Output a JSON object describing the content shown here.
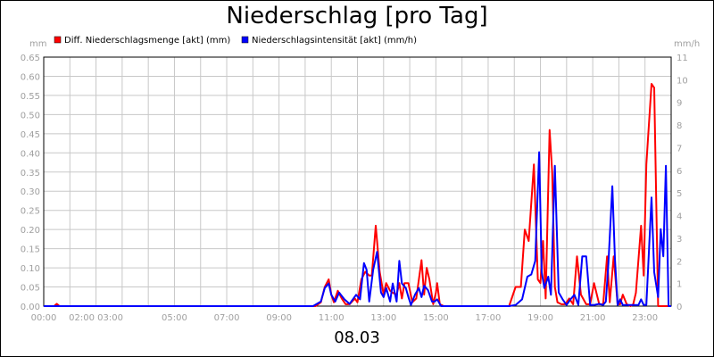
{
  "title": "Niederschlag [pro Tag]",
  "date_label": "08.03",
  "chart_data": {
    "type": "line",
    "title": "Niederschlag [pro Tag]",
    "xlabel": "08.03",
    "left_axis": {
      "unit": "mm",
      "ylim": [
        0,
        0.65
      ],
      "ticks": [
        "0.00",
        "0.05",
        "0.10",
        "0.15",
        "0.20",
        "0.25",
        "0.30",
        "0.35",
        "0.40",
        "0.45",
        "0.50",
        "0.55",
        "0.60",
        "0.65"
      ]
    },
    "right_axis": {
      "unit": "mm/h",
      "ylim": [
        0,
        11
      ],
      "ticks": [
        "0",
        "1",
        "2",
        "3",
        "4",
        "5",
        "6",
        "7",
        "8",
        "9",
        "10",
        "11"
      ]
    },
    "x_ticks": [
      {
        "x": 0,
        "label": "00:00"
      },
      {
        "x": 2,
        "label": "02:00 03:00"
      },
      {
        "x": 5,
        "label": "05:00"
      },
      {
        "x": 7,
        "label": "07:00"
      },
      {
        "x": 9,
        "label": "09:00"
      },
      {
        "x": 11,
        "label": "11:00"
      },
      {
        "x": 13,
        "label": "13:00"
      },
      {
        "x": 15,
        "label": "15:00"
      },
      {
        "x": 17,
        "label": "17:00"
      },
      {
        "x": 19,
        "label": "19:00"
      },
      {
        "x": 21,
        "label": "21:00"
      },
      {
        "x": 23,
        "label": "23:00"
      }
    ],
    "x_gridlines": [
      0,
      1,
      2,
      3,
      4,
      5,
      6,
      7,
      8,
      9,
      10,
      11,
      12,
      13,
      14,
      15,
      16,
      17,
      18,
      19,
      20,
      21,
      22,
      23,
      24
    ],
    "grid": true,
    "legend_position": "top-left",
    "series": [
      {
        "name": "Diff. Niederschlagsmenge [akt] (mm)",
        "axis": "left",
        "color": "#ff0000",
        "x": [
          0,
          0.4,
          0.5,
          0.6,
          10.4,
          10.6,
          10.75,
          10.9,
          11.0,
          11.1,
          11.25,
          11.4,
          11.55,
          11.7,
          11.9,
          12.0,
          12.15,
          12.3,
          12.45,
          12.55,
          12.7,
          12.85,
          13.0,
          13.1,
          13.25,
          13.35,
          13.5,
          13.6,
          13.7,
          13.8,
          13.95,
          14.1,
          14.25,
          14.45,
          14.55,
          14.65,
          14.75,
          14.9,
          15.0,
          15.05,
          15.15,
          15.3,
          17.8,
          18.05,
          18.25,
          18.4,
          18.55,
          18.75,
          18.9,
          19.0,
          19.1,
          19.2,
          19.35,
          19.45,
          19.55,
          19.65,
          19.8,
          19.95,
          20.1,
          20.25,
          20.4,
          20.55,
          20.75,
          20.9,
          21.05,
          21.25,
          21.4,
          21.55,
          21.65,
          21.8,
          21.95,
          22.05,
          22.15,
          22.3,
          22.45,
          22.55,
          22.65,
          22.85,
          22.95,
          23.05,
          23.25,
          23.35,
          23.5,
          23.65,
          23.75,
          23.8,
          23.9,
          24.0
        ],
        "y": [
          0,
          0,
          0.006,
          0,
          0,
          0.01,
          0.05,
          0.07,
          0.03,
          0.01,
          0.04,
          0.02,
          0.005,
          0.005,
          0.02,
          0.01,
          0.07,
          0.09,
          0.08,
          0.08,
          0.21,
          0.09,
          0.03,
          0.06,
          0.04,
          0.035,
          0.03,
          0.06,
          0.02,
          0.06,
          0.06,
          0.01,
          0.02,
          0.12,
          0.03,
          0.1,
          0.07,
          0.005,
          0.035,
          0.06,
          0.005,
          0,
          0,
          0.05,
          0.05,
          0.2,
          0.17,
          0.37,
          0.07,
          0.06,
          0.17,
          0.02,
          0.46,
          0.35,
          0.05,
          0.01,
          0.005,
          0.005,
          0.02,
          0.005,
          0.13,
          0.03,
          0.005,
          0.005,
          0.06,
          0.005,
          0.005,
          0.13,
          0.01,
          0.13,
          0.005,
          0.005,
          0.03,
          0.005,
          0,
          0.005,
          0.035,
          0.21,
          0.08,
          0.37,
          0.58,
          0.57,
          0,
          0,
          0,
          0,
          0,
          0
        ]
      },
      {
        "name": "Niederschlagsintensität [akt] (mm/h)",
        "axis": "right",
        "color": "#0000ff",
        "x": [
          0,
          10.3,
          10.6,
          10.75,
          10.9,
          11.0,
          11.15,
          11.3,
          11.5,
          11.7,
          11.95,
          12.1,
          12.25,
          12.35,
          12.45,
          12.6,
          12.75,
          12.9,
          13.0,
          13.1,
          13.25,
          13.35,
          13.5,
          13.6,
          13.7,
          13.85,
          13.95,
          14.05,
          14.2,
          14.35,
          14.45,
          14.55,
          14.7,
          14.85,
          14.95,
          15.05,
          15.2,
          17.8,
          18.05,
          18.3,
          18.5,
          18.65,
          18.8,
          18.95,
          19.05,
          19.15,
          19.3,
          19.4,
          19.55,
          19.7,
          19.85,
          20.0,
          20.15,
          20.3,
          20.45,
          20.6,
          20.75,
          20.9,
          21.05,
          21.25,
          21.4,
          21.5,
          21.6,
          21.75,
          21.85,
          21.95,
          22.05,
          22.15,
          22.3,
          22.45,
          22.6,
          22.75,
          22.85,
          22.95,
          23.05,
          23.25,
          23.35,
          23.5,
          23.6,
          23.7,
          23.8,
          23.9,
          24.0
        ],
        "y": [
          0,
          0,
          0.2,
          0.8,
          1.0,
          0.5,
          0.2,
          0.6,
          0.3,
          0.1,
          0.5,
          0.3,
          1.9,
          1.6,
          0.2,
          1.6,
          2.4,
          0.6,
          0.4,
          0.8,
          0.2,
          1.0,
          0.2,
          2.0,
          1.0,
          0.8,
          0.4,
          0.05,
          0.5,
          0.8,
          0.4,
          0.9,
          0.7,
          0.2,
          0.2,
          0.3,
          0,
          0,
          0.05,
          0.3,
          1.3,
          1.4,
          2.0,
          6.8,
          1.5,
          0.8,
          1.3,
          0.5,
          6.2,
          0.6,
          0.3,
          0.05,
          0.3,
          0.5,
          0.05,
          2.2,
          2.2,
          0.05,
          0.05,
          0.1,
          0.05,
          0.2,
          1.9,
          5.3,
          2.1,
          0.05,
          0.3,
          0.05,
          0.05,
          0.05,
          0.05,
          0.05,
          0.3,
          0.05,
          0.05,
          4.8,
          1.5,
          0.4,
          3.4,
          2.2,
          6.2,
          0,
          0
        ]
      }
    ]
  }
}
